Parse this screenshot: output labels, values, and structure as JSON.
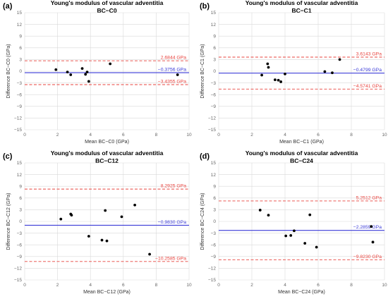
{
  "figure": {
    "panels_count": 4
  },
  "chart_data": [
    {
      "panel_label": "(a)",
      "type": "scatter",
      "title": "Young's modulus of vascular adventitia",
      "subtitle": "BC−C0",
      "xlabel": "Mean BC−C0 (GPa)",
      "ylabel": "Difference BC−C0 (GPa)",
      "xlim": [
        0,
        10
      ],
      "ylim": [
        -15,
        15
      ],
      "xticks": [
        0,
        2,
        4,
        6,
        8,
        10
      ],
      "yticks": [
        -15,
        -12,
        -9,
        -6,
        -3,
        0,
        3,
        6,
        9,
        12,
        15
      ],
      "grid": true,
      "points": [
        {
          "x": 1.9,
          "y": 0.4
        },
        {
          "x": 2.6,
          "y": -0.2
        },
        {
          "x": 2.8,
          "y": -0.9
        },
        {
          "x": 3.5,
          "y": 0.7
        },
        {
          "x": 3.7,
          "y": -0.8
        },
        {
          "x": 3.8,
          "y": -0.2
        },
        {
          "x": 3.9,
          "y": -2.6
        },
        {
          "x": 5.2,
          "y": 1.9
        },
        {
          "x": 9.3,
          "y": -0.9
        }
      ],
      "lines": [
        {
          "y": 2.6844,
          "label": "2.6844 GPa",
          "style": "dashed",
          "color": "#e8433e"
        },
        {
          "y": -0.3756,
          "label": "−0.3756 GPa",
          "style": "solid",
          "color": "#3b3bd8"
        },
        {
          "y": -3.4355,
          "label": "−3.4355 GPa",
          "style": "dashed",
          "color": "#e8433e"
        }
      ]
    },
    {
      "panel_label": "(b)",
      "type": "scatter",
      "title": "Young's modulus of vascular adventitia",
      "subtitle": "BC−C1",
      "xlabel": "Mean BC−C1 (GPa)",
      "ylabel": "Difference BC−C1 (GPa)",
      "xlim": [
        0,
        10
      ],
      "ylim": [
        -15,
        15
      ],
      "xticks": [
        0,
        2,
        4,
        6,
        8,
        10
      ],
      "yticks": [
        -15,
        -12,
        -9,
        -6,
        -3,
        0,
        3,
        6,
        9,
        12,
        15
      ],
      "grid": true,
      "points": [
        {
          "x": 2.6,
          "y": -1.0
        },
        {
          "x": 2.95,
          "y": 1.9
        },
        {
          "x": 3.0,
          "y": 1.0
        },
        {
          "x": 3.4,
          "y": -2.2
        },
        {
          "x": 3.6,
          "y": -2.3
        },
        {
          "x": 3.75,
          "y": -2.7
        },
        {
          "x": 4.0,
          "y": -0.7
        },
        {
          "x": 6.4,
          "y": -0.1
        },
        {
          "x": 6.85,
          "y": -0.4
        },
        {
          "x": 7.3,
          "y": 3.0
        }
      ],
      "lines": [
        {
          "y": 3.6143,
          "label": "3.6143 GPa",
          "style": "dashed",
          "color": "#e8433e"
        },
        {
          "y": -0.4799,
          "label": "−0.4799 GPa",
          "style": "solid",
          "color": "#3b3bd8"
        },
        {
          "y": -4.5741,
          "label": "−4.5741 GPa",
          "style": "dashed",
          "color": "#e8433e"
        }
      ]
    },
    {
      "panel_label": "(c)",
      "type": "scatter",
      "title": "Young's modulus of vascular adventitia",
      "subtitle": "BC−C12",
      "xlabel": "Mean BC−C12 (GPa)",
      "ylabel": "Difference BC−C12 (GPa)",
      "xlim": [
        0,
        10
      ],
      "ylim": [
        -15,
        15
      ],
      "xticks": [
        0,
        2,
        4,
        6,
        8,
        10
      ],
      "yticks": [
        -15,
        -12,
        -9,
        -6,
        -3,
        0,
        3,
        6,
        9,
        12,
        15
      ],
      "grid": true,
      "points": [
        {
          "x": 2.2,
          "y": 0.6
        },
        {
          "x": 2.8,
          "y": 1.9
        },
        {
          "x": 2.85,
          "y": 1.6
        },
        {
          "x": 3.9,
          "y": -3.8
        },
        {
          "x": 4.7,
          "y": -4.8
        },
        {
          "x": 4.9,
          "y": 2.8
        },
        {
          "x": 5.0,
          "y": -5.0
        },
        {
          "x": 5.9,
          "y": 1.2
        },
        {
          "x": 6.7,
          "y": 4.2
        },
        {
          "x": 7.6,
          "y": -8.4
        }
      ],
      "lines": [
        {
          "y": 8.2925,
          "label": "8.2925 GPa",
          "style": "dashed",
          "color": "#e8433e"
        },
        {
          "y": -0.983,
          "label": "−0.9830 GPa",
          "style": "solid",
          "color": "#3b3bd8"
        },
        {
          "y": -10.2585,
          "label": "−10.2585 GPa",
          "style": "dashed",
          "color": "#e8433e"
        }
      ]
    },
    {
      "panel_label": "(d)",
      "type": "scatter",
      "title": "Young's modulus of vascular adventitia",
      "subtitle": "BC−C24",
      "xlabel": "Mean BC−C24 (GPa)",
      "ylabel": "Difference BC−C24 (GPa)",
      "xlim": [
        0,
        10
      ],
      "ylim": [
        -15,
        15
      ],
      "xticks": [
        0,
        2,
        4,
        6,
        8,
        10
      ],
      "yticks": [
        -15,
        -12,
        -9,
        -6,
        -3,
        0,
        3,
        6,
        9,
        12,
        15
      ],
      "grid": true,
      "points": [
        {
          "x": 2.5,
          "y": 2.9
        },
        {
          "x": 3.0,
          "y": 1.6
        },
        {
          "x": 4.05,
          "y": -3.7
        },
        {
          "x": 4.35,
          "y": -3.6
        },
        {
          "x": 4.55,
          "y": -2.4
        },
        {
          "x": 5.2,
          "y": -5.6
        },
        {
          "x": 5.5,
          "y": 1.7
        },
        {
          "x": 5.9,
          "y": -6.6
        },
        {
          "x": 9.2,
          "y": -1.3
        },
        {
          "x": 9.3,
          "y": -5.3
        }
      ],
      "lines": [
        {
          "y": 5.2512,
          "label": "5.2512 GPa",
          "style": "dashed",
          "color": "#e8433e"
        },
        {
          "y": -2.2859,
          "label": "−2.2859 GPa",
          "style": "solid",
          "color": "#3b3bd8"
        },
        {
          "y": -9.823,
          "label": "−9.8230 GPa",
          "style": "dashed",
          "color": "#e8433e"
        }
      ]
    }
  ]
}
